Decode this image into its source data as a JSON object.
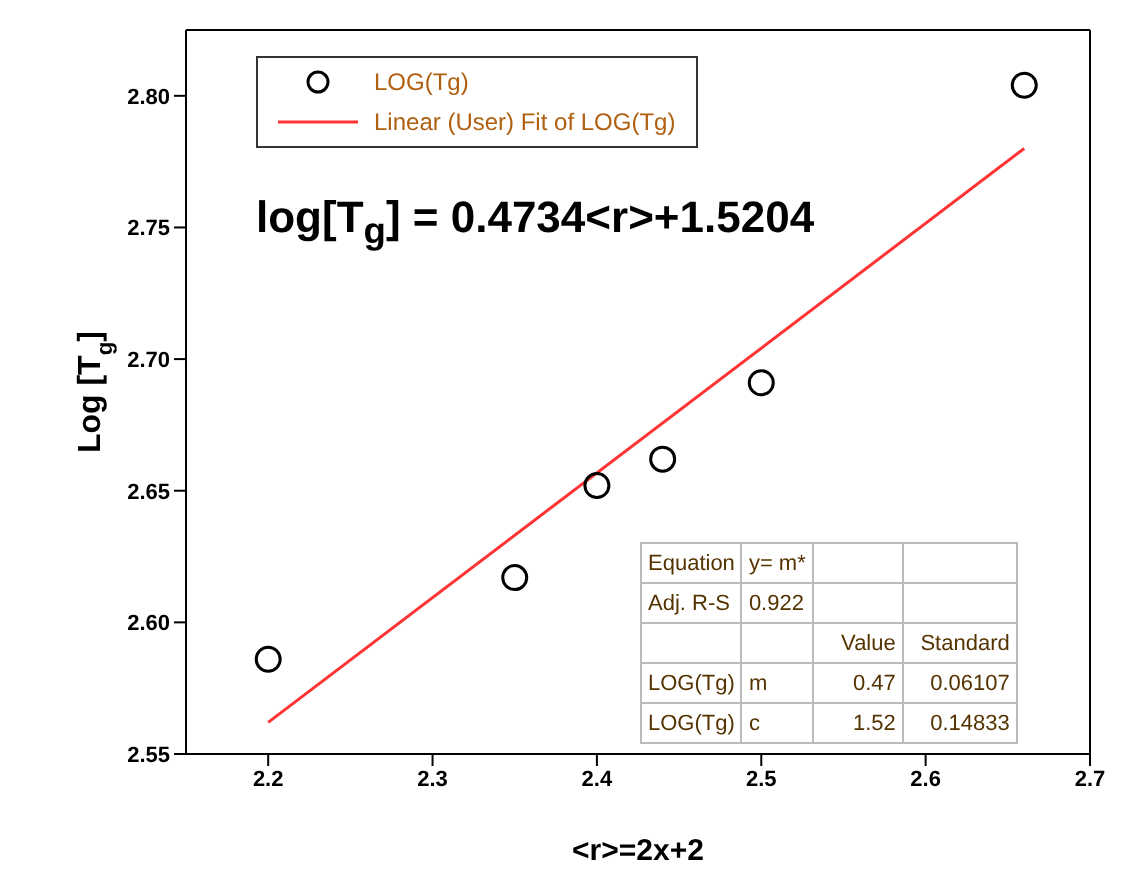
{
  "chart_data": {
    "type": "scatter",
    "xlabel": "<r>=2x+2",
    "ylabel": "Log [T$_{g}$]",
    "xlim": [
      2.15,
      2.7
    ],
    "xticks": [
      2.2,
      2.3,
      2.4,
      2.5,
      2.6,
      2.7
    ],
    "ylim": [
      2.55,
      2.825
    ],
    "yticks": [
      2.55,
      {
        "value": 2.6,
        "label": "2.60"
      },
      2.65,
      {
        "value": 2.7,
        "label": "2.70"
      },
      2.75,
      {
        "value": 2.8,
        "label": "2.80"
      }
    ],
    "grid": false,
    "legend": "top left",
    "marker": "circle",
    "series": [
      {
        "name": "LOG(Tg)",
        "type": "scatter",
        "color": "#000000",
        "x": [
          2.2,
          2.35,
          2.4,
          2.44,
          2.5,
          2.66
        ],
        "values": [
          2.586,
          2.617,
          2.652,
          2.662,
          2.691,
          2.804
        ]
      },
      {
        "name": "Linear (User) Fit of LOG(Tg)",
        "type": "line",
        "color": "#ff3333",
        "x": [
          2.2,
          2.66
        ],
        "values": [
          2.562,
          2.78
        ],
        "marker": "none"
      }
    ],
    "annotations": [
      "log[T$_{g}$] = 0.4734<r>+1.5204",
      "Equation\ty= m*\t\t",
      "Adj. R-S\t0.922\t\t",
      "\t\tValue\tStandard",
      "LOG(Tg)\tm\t0.47\t0.06107",
      "LOG(Tg)\tc\t1.52\t0.14833"
    ]
  }
}
